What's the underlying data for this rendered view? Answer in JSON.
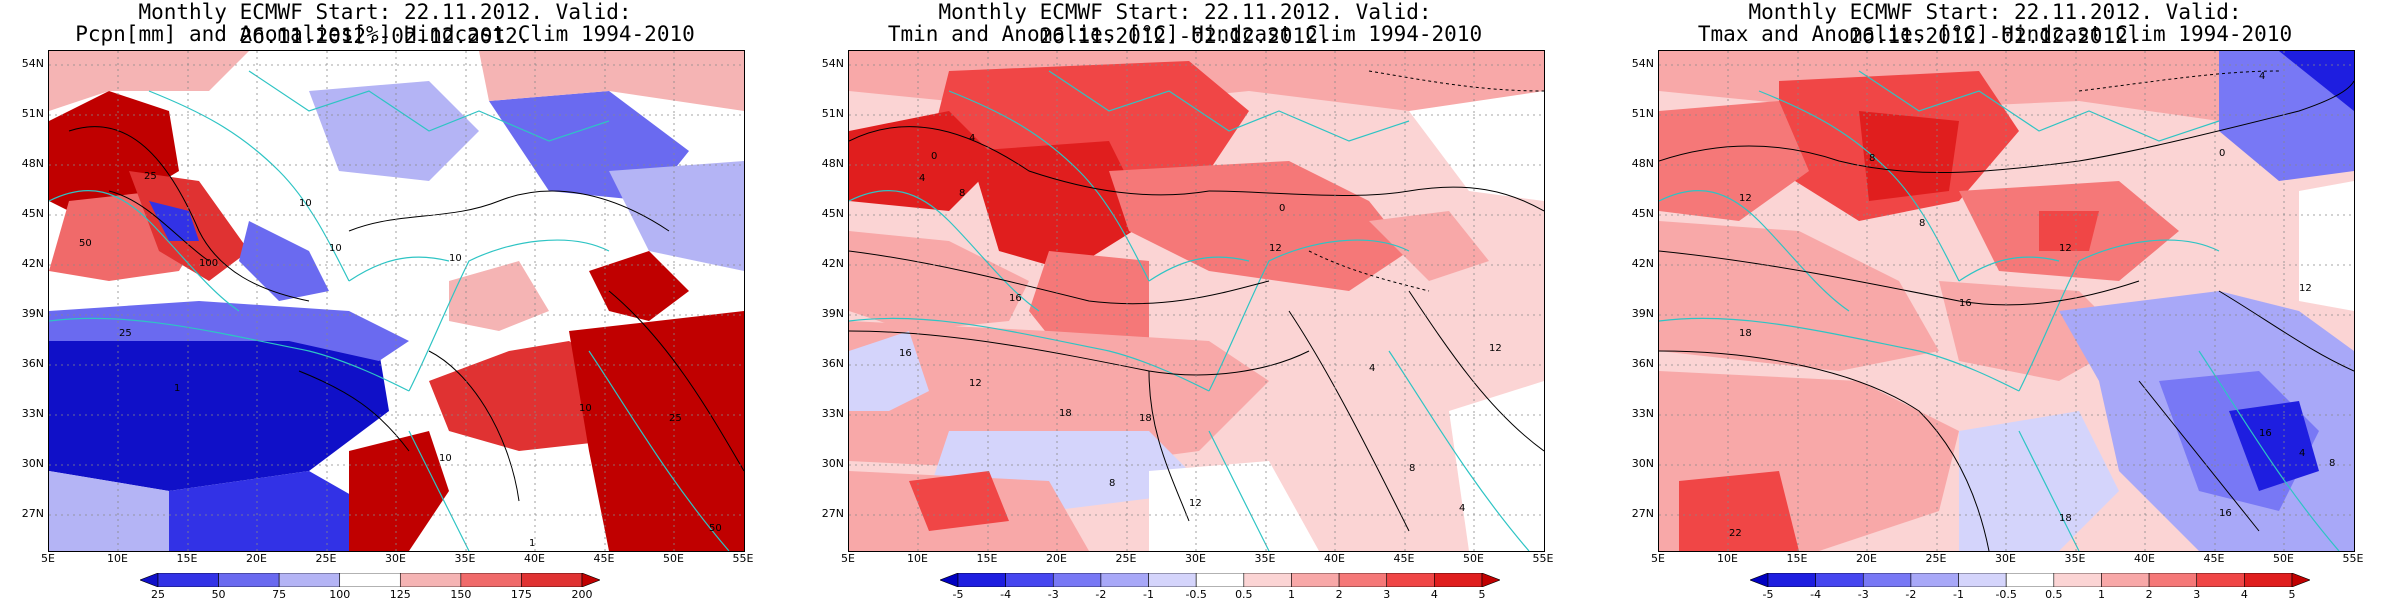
{
  "panels": [
    {
      "title1": "Monthly ECMWF Start: 22.11.2012. Valid: 26.11.2012.-02.12.2012.",
      "title2": "Pcpn[mm] and Anomalies[%] Hindcast Clim 1994-2010",
      "variable": "precipitation",
      "colorbar_labels": [
        "25",
        "50",
        "75",
        "100",
        "125",
        "150",
        "175",
        "200"
      ],
      "colors": [
        "#1010c8",
        "#3232e6",
        "#6a6af0",
        "#b4b4f5",
        "#ffffff",
        "#f5b4b4",
        "#f06a6a",
        "#e03232",
        "#c00000"
      ],
      "contour_labels": [
        "25",
        "50",
        "10",
        "100",
        "10",
        "25",
        "10",
        "1",
        "10",
        "25",
        "50",
        "10",
        "1"
      ]
    },
    {
      "title1": "Monthly ECMWF Start: 22.11.2012. Valid: 26.11.2012.-02.12.2012.",
      "title2": "Tmin and Anomalies [°C] Hindcast Clim 1994-2010",
      "variable": "tmin",
      "colorbar_labels": [
        "-5",
        "-4",
        "-3",
        "-2",
        "-1",
        "-0.5",
        "0.5",
        "1",
        "2",
        "3",
        "4",
        "5"
      ],
      "colors": [
        "#0000c0",
        "#1e1ee0",
        "#4646f0",
        "#7878f5",
        "#a8a8f8",
        "#d4d4fb",
        "#ffffff",
        "#fbd4d4",
        "#f8a8a8",
        "#f57878",
        "#f04646",
        "#e01e1e",
        "#c00000"
      ],
      "contour_labels": [
        "0",
        "4",
        "4",
        "8",
        "12",
        "16",
        "16",
        "12",
        "18",
        "8",
        "12",
        "4",
        "8",
        "4",
        "0",
        "12",
        "18"
      ]
    },
    {
      "title1": "Monthly ECMWF Start: 22.11.2012. Valid: 26.11.2012.-02.12.2012.",
      "title2": "Tmax and Anomalies [°C] Hindcast Clim 1994-2010",
      "variable": "tmax",
      "colorbar_labels": [
        "-5",
        "-4",
        "-3",
        "-2",
        "-1",
        "-0.5",
        "0.5",
        "1",
        "2",
        "3",
        "4",
        "5"
      ],
      "colors": [
        "#0000c0",
        "#1e1ee0",
        "#4646f0",
        "#7878f5",
        "#a8a8f8",
        "#d4d4fb",
        "#ffffff",
        "#fbd4d4",
        "#f8a8a8",
        "#f57878",
        "#f04646",
        "#e01e1e",
        "#c00000"
      ],
      "contour_labels": [
        "4",
        "0",
        "8",
        "12",
        "8",
        "12",
        "16",
        "18",
        "12",
        "16",
        "16",
        "4",
        "8",
        "22",
        "18"
      ]
    }
  ],
  "lat_labels": [
    "54N",
    "51N",
    "48N",
    "45N",
    "42N",
    "39N",
    "36N",
    "33N",
    "30N",
    "27N"
  ],
  "lon_labels": [
    "5E",
    "10E",
    "15E",
    "20E",
    "25E",
    "30E",
    "35E",
    "40E",
    "45E",
    "50E",
    "55E"
  ]
}
